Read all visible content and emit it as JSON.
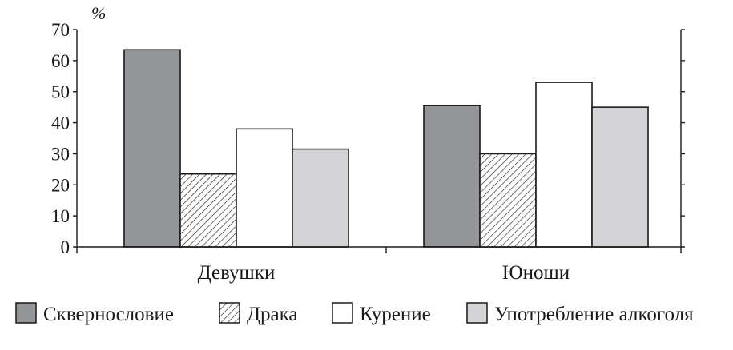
{
  "chart_data": {
    "type": "bar",
    "ylabel": "%",
    "ylim": [
      0,
      70
    ],
    "yticks": [
      0,
      10,
      20,
      30,
      40,
      50,
      60,
      70
    ],
    "grid": false,
    "legend_position": "bottom",
    "categories": [
      "Девушки",
      "Юноши"
    ],
    "series": [
      {
        "name": "Сквернословие",
        "values": [
          63.5,
          45.5
        ],
        "fill": "#939598",
        "pattern": "solid"
      },
      {
        "name": "Драка",
        "values": [
          23.5,
          30
        ],
        "fill": "#ffffff",
        "pattern": "hatch"
      },
      {
        "name": "Курение",
        "values": [
          38,
          53
        ],
        "fill": "#ffffff",
        "pattern": "solid"
      },
      {
        "name": "Употребление алкоголя",
        "values": [
          31.5,
          45
        ],
        "fill": "#d4d4d6",
        "pattern": "solid"
      }
    ]
  }
}
